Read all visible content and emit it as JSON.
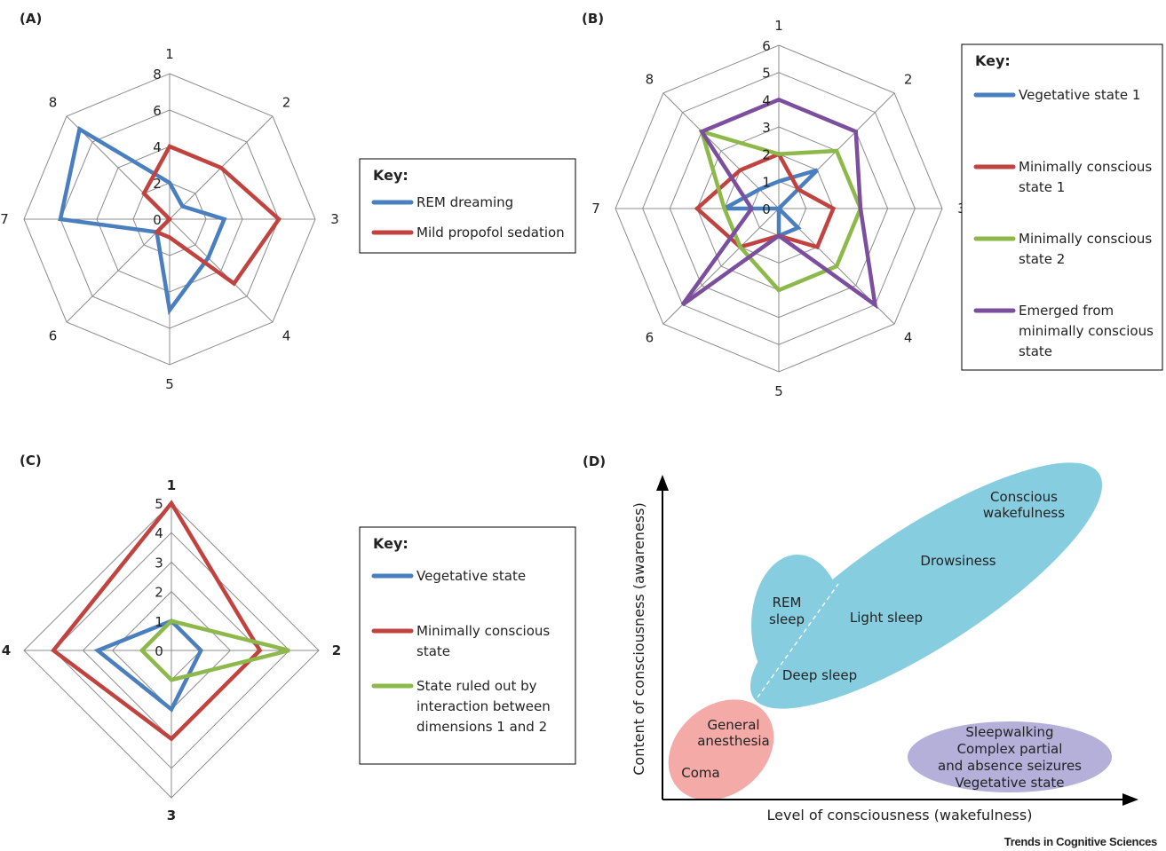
{
  "panels": [
    {
      "label": "(A)",
      "chart_data": {
        "type": "radar",
        "axes": [
          "1",
          "2",
          "3",
          "4",
          "5",
          "6",
          "7",
          "8"
        ],
        "rmax": 8,
        "ticks": [
          "0",
          "2",
          "4",
          "6",
          "8"
        ],
        "legend_title": "Key:",
        "series": [
          {
            "name": "REM dreaming",
            "color": "#4a7fbf",
            "values": [
              2,
              1,
              3,
              3,
              5,
              1,
              6,
              7
            ]
          },
          {
            "name": "Mild propofol sedation",
            "color": "#c0433f",
            "values": [
              4,
              4,
              6,
              5,
              1,
              1,
              0,
              2
            ]
          }
        ]
      }
    },
    {
      "label": "(B)",
      "chart_data": {
        "type": "radar",
        "axes": [
          "1",
          "2",
          "3",
          "4",
          "5",
          "6",
          "7",
          "8"
        ],
        "rmax": 6,
        "ticks": [
          "0",
          "1",
          "2",
          "3",
          "4",
          "5",
          "6"
        ],
        "legend_title": "Key:",
        "series": [
          {
            "name": "Vegetative state 1",
            "color": "#4a7fbf",
            "values": [
              1,
              2,
              0,
              1,
              1,
              0,
              2,
              1
            ]
          },
          {
            "name": "Minimally conscious state 1",
            "color": "#c0433f",
            "values": [
              2,
              1,
              2,
              2,
              1,
              2,
              3,
              2
            ]
          },
          {
            "name": "Minimally conscious state 2",
            "color": "#8db84a",
            "values": [
              2,
              3,
              3,
              3,
              3,
              2,
              2,
              4
            ]
          },
          {
            "name": "Emerged from minimally conscious state",
            "color": "#7b4e9e",
            "values": [
              4,
              4,
              3,
              5,
              1,
              5,
              1,
              4
            ]
          }
        ]
      }
    },
    {
      "label": "(C)",
      "chart_data": {
        "type": "radar",
        "axes": [
          "1",
          "2",
          "3",
          "4"
        ],
        "rmax": 5,
        "ticks": [
          "0",
          "1",
          "2",
          "3",
          "4",
          "5"
        ],
        "legend_title": "Key:",
        "series": [
          {
            "name": "Vegetative state",
            "color": "#4a7fbf",
            "values": [
              1,
              1,
              2,
              2.5
            ]
          },
          {
            "name": "Minimally conscious state",
            "color": "#c0433f",
            "values": [
              5,
              3,
              3,
              4
            ]
          },
          {
            "name": "State ruled out by interaction between dimensions 1 and 2",
            "color": "#8db84a",
            "values": [
              1,
              4,
              1,
              1
            ]
          }
        ]
      }
    }
  ],
  "panel_d": {
    "label": "(D)",
    "xlabel": "Level of consciousness (wakefulness)",
    "ylabel": "Content of consciousness (awareness)",
    "regions": {
      "conscious_wakefulness": [
        "Conscious",
        "wakefulness"
      ],
      "drowsiness": "Drowsiness",
      "light_sleep": "Light sleep",
      "deep_sleep": "Deep sleep",
      "rem_sleep": [
        "REM",
        "sleep"
      ],
      "general_anesthesia": [
        "General",
        "anesthesia"
      ],
      "coma": "Coma",
      "disorders": [
        "Sleepwalking",
        "Complex partial",
        "and absence seizures",
        "Vegetative state"
      ]
    },
    "colors": {
      "blue": "#87cde0",
      "pink": "#f4aaa6",
      "purple": "#b4b0da"
    }
  },
  "footer": "Trends in Cognitive Sciences"
}
